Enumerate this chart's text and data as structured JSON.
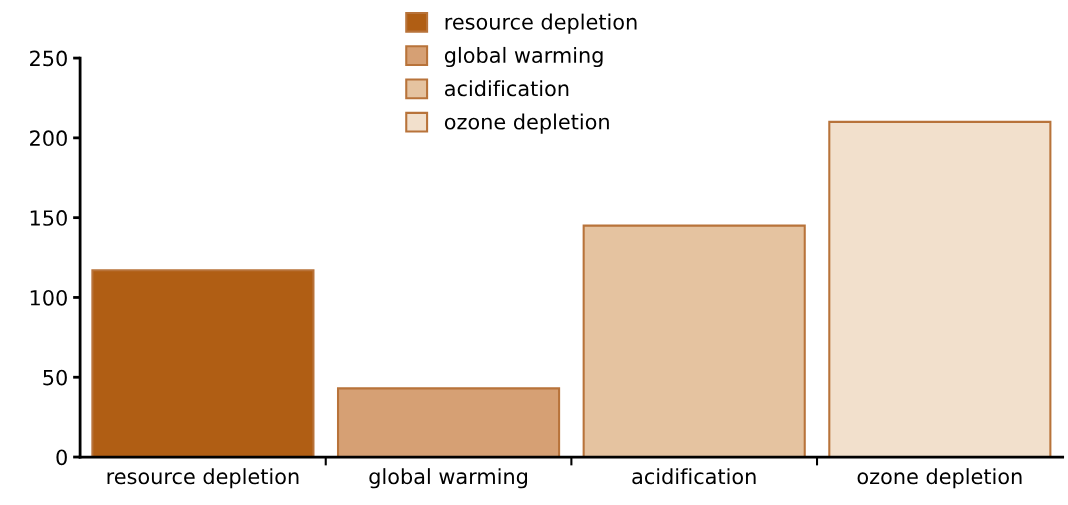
{
  "chart_data": {
    "type": "bar",
    "categories": [
      "resource depletion",
      "global warming",
      "acidification",
      "ozone depletion"
    ],
    "series": [
      {
        "name": "resource depletion",
        "color": "#b05e14",
        "values": [
          117,
          null,
          null,
          null
        ]
      },
      {
        "name": "global warming",
        "color": "#d6a074",
        "values": [
          null,
          43,
          null,
          null
        ]
      },
      {
        "name": "acidification",
        "color": "#e5c3a0",
        "values": [
          null,
          null,
          145,
          null
        ]
      },
      {
        "name": "ozone depletion",
        "color": "#f2e0cc",
        "values": [
          null,
          null,
          null,
          210
        ]
      }
    ],
    "ylim": [
      0,
      250
    ],
    "yticks": [
      0,
      50,
      100,
      150,
      200,
      250
    ],
    "grid": false,
    "legend": "top"
  }
}
